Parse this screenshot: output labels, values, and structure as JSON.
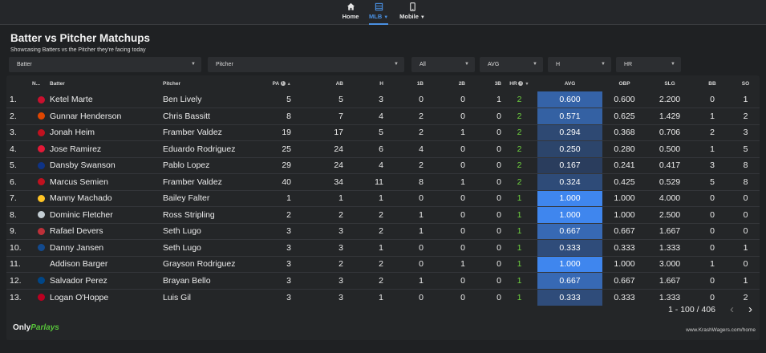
{
  "nav": {
    "items": [
      {
        "label": "Home",
        "icon": "home-icon",
        "active": false,
        "caret": false
      },
      {
        "label": "MLB",
        "icon": "table-icon",
        "active": true,
        "caret": true
      },
      {
        "label": "Mobile",
        "icon": "mobile-icon",
        "active": false,
        "caret": true
      }
    ]
  },
  "header": {
    "title": "Batter vs Pitcher Matchups",
    "subtitle": "Showcasing Batters vs the Pitcher they're facing today"
  },
  "filters": {
    "batter": "Batter",
    "pitcher": "Pitcher",
    "team": "All",
    "stat1": "AVG",
    "stat2": "H",
    "stat3": "HR"
  },
  "table": {
    "columns": {
      "num": "N...",
      "batter": "Batter",
      "pitcher": "Pitcher",
      "pa": "PA",
      "ab": "AB",
      "h": "H",
      "b1": "1B",
      "b2": "2B",
      "b3": "3B",
      "hr": "HR",
      "avg": "AVG",
      "obp": "OBP",
      "slg": "SLG",
      "bb": "BB",
      "so": "SO"
    },
    "rows": [
      {
        "num": "1.",
        "logo": "#c8102e",
        "batter": "Ketel Marte",
        "pitcher": "Ben Lively",
        "pa": "5",
        "ab": "5",
        "h": "3",
        "b1": "0",
        "b2": "0",
        "b3": "1",
        "hr": "2",
        "avg": "0.600",
        "avg_level": 0.6,
        "obp": "0.600",
        "slg": "2.200",
        "bb": "0",
        "so": "1"
      },
      {
        "num": "2.",
        "logo": "#df4601",
        "batter": "Gunnar Henderson",
        "pitcher": "Chris Bassitt",
        "pa": "8",
        "ab": "7",
        "h": "4",
        "b1": "2",
        "b2": "0",
        "b3": "0",
        "hr": "2",
        "avg": "0.571",
        "avg_level": 0.571,
        "obp": "0.625",
        "slg": "1.429",
        "bb": "1",
        "so": "2"
      },
      {
        "num": "3.",
        "logo": "#c0111f",
        "batter": "Jonah Heim",
        "pitcher": "Framber Valdez",
        "pa": "19",
        "ab": "17",
        "h": "5",
        "b1": "2",
        "b2": "1",
        "b3": "0",
        "hr": "2",
        "avg": "0.294",
        "avg_level": 0.294,
        "obp": "0.368",
        "slg": "0.706",
        "bb": "2",
        "so": "3"
      },
      {
        "num": "4.",
        "logo": "#e31937",
        "batter": "Jose Ramirez",
        "pitcher": "Eduardo Rodriguez",
        "pa": "25",
        "ab": "24",
        "h": "6",
        "b1": "4",
        "b2": "0",
        "b3": "0",
        "hr": "2",
        "avg": "0.250",
        "avg_level": 0.25,
        "obp": "0.280",
        "slg": "0.500",
        "bb": "1",
        "so": "5"
      },
      {
        "num": "5.",
        "logo": "#0e3386",
        "batter": "Dansby Swanson",
        "pitcher": "Pablo Lopez",
        "pa": "29",
        "ab": "24",
        "h": "4",
        "b1": "2",
        "b2": "0",
        "b3": "0",
        "hr": "2",
        "avg": "0.167",
        "avg_level": 0.167,
        "obp": "0.241",
        "slg": "0.417",
        "bb": "3",
        "so": "8"
      },
      {
        "num": "6.",
        "logo": "#c0111f",
        "batter": "Marcus Semien",
        "pitcher": "Framber Valdez",
        "pa": "40",
        "ab": "34",
        "h": "11",
        "b1": "8",
        "b2": "1",
        "b3": "0",
        "hr": "2",
        "avg": "0.324",
        "avg_level": 0.324,
        "obp": "0.425",
        "slg": "0.529",
        "bb": "5",
        "so": "8"
      },
      {
        "num": "7.",
        "logo": "#ffc425",
        "batter": "Manny Machado",
        "pitcher": "Bailey Falter",
        "pa": "1",
        "ab": "1",
        "h": "1",
        "b1": "0",
        "b2": "0",
        "b3": "0",
        "hr": "1",
        "avg": "1.000",
        "avg_level": 1.0,
        "obp": "1.000",
        "slg": "4.000",
        "bb": "0",
        "so": "0"
      },
      {
        "num": "8.",
        "logo": "#c4ced4",
        "batter": "Dominic Fletcher",
        "pitcher": "Ross Stripling",
        "pa": "2",
        "ab": "2",
        "h": "2",
        "b1": "1",
        "b2": "0",
        "b3": "0",
        "hr": "1",
        "avg": "1.000",
        "avg_level": 1.0,
        "obp": "1.000",
        "slg": "2.500",
        "bb": "0",
        "so": "0"
      },
      {
        "num": "9.",
        "logo": "#bd3039",
        "batter": "Rafael Devers",
        "pitcher": "Seth Lugo",
        "pa": "3",
        "ab": "3",
        "h": "2",
        "b1": "1",
        "b2": "0",
        "b3": "0",
        "hr": "1",
        "avg": "0.667",
        "avg_level": 0.667,
        "obp": "0.667",
        "slg": "1.667",
        "bb": "0",
        "so": "0"
      },
      {
        "num": "10.",
        "logo": "#134a8e",
        "batter": "Danny Jansen",
        "pitcher": "Seth Lugo",
        "pa": "3",
        "ab": "3",
        "h": "1",
        "b1": "0",
        "b2": "0",
        "b3": "0",
        "hr": "1",
        "avg": "0.333",
        "avg_level": 0.333,
        "obp": "0.333",
        "slg": "1.333",
        "bb": "0",
        "so": "1"
      },
      {
        "num": "11.",
        "logo": "",
        "batter": "Addison Barger",
        "pitcher": "Grayson Rodriguez",
        "pa": "3",
        "ab": "2",
        "h": "2",
        "b1": "0",
        "b2": "1",
        "b3": "0",
        "hr": "1",
        "avg": "1.000",
        "avg_level": 1.0,
        "obp": "1.000",
        "slg": "3.000",
        "bb": "1",
        "so": "0"
      },
      {
        "num": "12.",
        "logo": "#004687",
        "batter": "Salvador Perez",
        "pitcher": "Brayan Bello",
        "pa": "3",
        "ab": "3",
        "h": "2",
        "b1": "1",
        "b2": "0",
        "b3": "0",
        "hr": "1",
        "avg": "0.667",
        "avg_level": 0.667,
        "obp": "0.667",
        "slg": "1.667",
        "bb": "0",
        "so": "1"
      },
      {
        "num": "13.",
        "logo": "#ba0021",
        "batter": "Logan O'Hoppe",
        "pitcher": "Luis Gil",
        "pa": "3",
        "ab": "3",
        "h": "1",
        "b1": "0",
        "b2": "0",
        "b3": "0",
        "hr": "1",
        "avg": "0.333",
        "avg_level": 0.333,
        "obp": "0.333",
        "slg": "1.333",
        "bb": "0",
        "so": "2"
      }
    ]
  },
  "pagination": {
    "range": "1 - 100 / 406",
    "prev": "‹",
    "next": "›"
  },
  "footer": {
    "brand_prefix": "Only",
    "brand_accent": "Parlays",
    "url": "www.KrashWagers.com/home"
  },
  "colors": {
    "accent": "#4a90e2",
    "positive": "#6fd23f",
    "avg_low": "#2a3c5a",
    "avg_high": "#3f86ee"
  }
}
